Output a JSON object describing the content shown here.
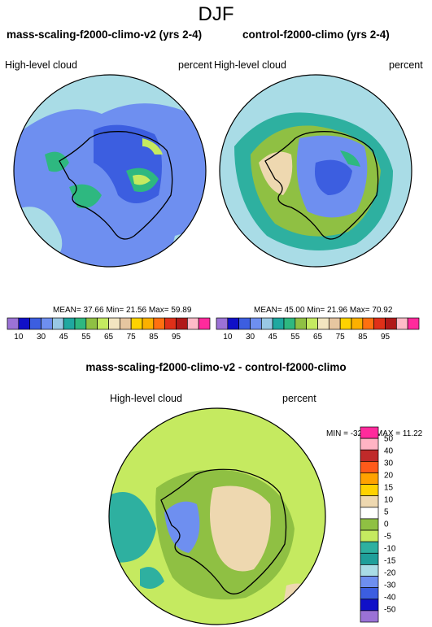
{
  "title": "DJF",
  "panels": {
    "test": {
      "title": "mass-scaling-f2000-climo-v2 (yrs 2-4)",
      "variable": "High-level cloud",
      "units": "percent",
      "stats": "MEAN= 37.66  Min= 21.56  Max= 59.89"
    },
    "control": {
      "title": "control-f2000-climo (yrs 2-4)",
      "variable": "High-level cloud",
      "units": "percent",
      "stats": "MEAN= 45.00  Min= 21.96  Max= 70.92"
    },
    "diff": {
      "title": "mass-scaling-f2000-climo-v2 - control-f2000-climo",
      "variable": "High-level cloud",
      "units": "percent",
      "stats": "MIN = -32.13  MAX = 11.22"
    }
  },
  "colorbar_main": {
    "colors": [
      "#9b72d6",
      "#1010c8",
      "#3c5ee0",
      "#6e8ff0",
      "#99c8e4",
      "#1fa8a0",
      "#2eb880",
      "#8fc043",
      "#c5ea60",
      "#f2e5c0",
      "#e6c6a0",
      "#ffd200",
      "#fcb000",
      "#ff7010",
      "#e03018",
      "#b01818",
      "#ffbcc8",
      "#ff2a9c"
    ],
    "labels": [
      "10",
      "30",
      "45",
      "55",
      "65",
      "75",
      "85",
      "95"
    ]
  },
  "colorbar_diff": {
    "colors_top_to_bottom": [
      "#ff2a9c",
      "#ffb4c4",
      "#c02a2a",
      "#ff5a1a",
      "#ffa200",
      "#ffd200",
      "#eed8b0",
      "#ffffff",
      "#8fc043",
      "#c5ea60",
      "#2eb0a0",
      "#1f9f9a",
      "#a9dce6",
      "#6e8ff0",
      "#3c5ee0",
      "#1010c8",
      "#9b72d6"
    ],
    "labels_top_to_bottom": [
      "50",
      "40",
      "30",
      "20",
      "15",
      "10",
      "5",
      "0",
      "-5",
      "-10",
      "-15",
      "-20",
      "-30",
      "-40",
      "-50"
    ]
  }
}
